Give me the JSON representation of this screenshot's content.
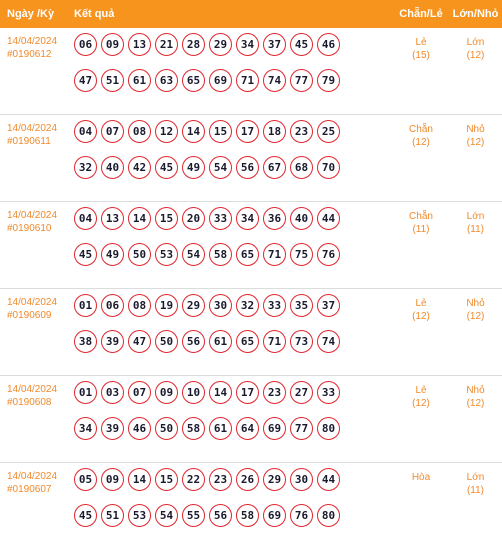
{
  "header": {
    "date_label": "Ngày /Kỳ",
    "result_label": "Kết quả",
    "chan_le_label": "Chẵn/Lẻ",
    "lon_nho_label": "Lớn/Nhỏ"
  },
  "rows": [
    {
      "date": "14/04/2024",
      "ky": "#0190612",
      "balls1": [
        "06",
        "09",
        "13",
        "21",
        "28",
        "29",
        "34",
        "37",
        "45",
        "46"
      ],
      "balls2": [
        "47",
        "51",
        "61",
        "63",
        "65",
        "69",
        "71",
        "74",
        "77",
        "79"
      ],
      "chan_le": "Lẻ",
      "chan_le_count": "(15)",
      "lon_nho": "Lớn",
      "lon_nho_count": "(12)"
    },
    {
      "date": "14/04/2024",
      "ky": "#0190611",
      "balls1": [
        "04",
        "07",
        "08",
        "12",
        "14",
        "15",
        "17",
        "18",
        "23",
        "25"
      ],
      "balls2": [
        "32",
        "40",
        "42",
        "45",
        "49",
        "54",
        "56",
        "67",
        "68",
        "70"
      ],
      "chan_le": "Chẵn",
      "chan_le_count": "(12)",
      "lon_nho": "Nhỏ",
      "lon_nho_count": "(12)"
    },
    {
      "date": "14/04/2024",
      "ky": "#0190610",
      "balls1": [
        "04",
        "13",
        "14",
        "15",
        "20",
        "33",
        "34",
        "36",
        "40",
        "44"
      ],
      "balls2": [
        "45",
        "49",
        "50",
        "53",
        "54",
        "58",
        "65",
        "71",
        "75",
        "76"
      ],
      "chan_le": "Chẵn",
      "chan_le_count": "(11)",
      "lon_nho": "Lớn",
      "lon_nho_count": "(11)"
    },
    {
      "date": "14/04/2024",
      "ky": "#0190609",
      "balls1": [
        "01",
        "06",
        "08",
        "19",
        "29",
        "30",
        "32",
        "33",
        "35",
        "37"
      ],
      "balls2": [
        "38",
        "39",
        "47",
        "50",
        "56",
        "61",
        "65",
        "71",
        "73",
        "74"
      ],
      "chan_le": "Lẻ",
      "chan_le_count": "(12)",
      "lon_nho": "Nhỏ",
      "lon_nho_count": "(12)"
    },
    {
      "date": "14/04/2024",
      "ky": "#0190608",
      "balls1": [
        "01",
        "03",
        "07",
        "09",
        "10",
        "14",
        "17",
        "23",
        "27",
        "33"
      ],
      "balls2": [
        "34",
        "39",
        "46",
        "50",
        "58",
        "61",
        "64",
        "69",
        "77",
        "80"
      ],
      "chan_le": "Lẻ",
      "chan_le_count": "(12)",
      "lon_nho": "Nhỏ",
      "lon_nho_count": "(12)"
    },
    {
      "date": "14/04/2024",
      "ky": "#0190607",
      "balls1": [
        "05",
        "09",
        "14",
        "15",
        "22",
        "23",
        "26",
        "29",
        "30",
        "44"
      ],
      "balls2": [
        "45",
        "51",
        "53",
        "54",
        "55",
        "56",
        "58",
        "69",
        "76",
        "80"
      ],
      "chan_le": "Hòa",
      "chan_le_count": "",
      "lon_nho": "Lớn",
      "lon_nho_count": "(11)"
    }
  ]
}
